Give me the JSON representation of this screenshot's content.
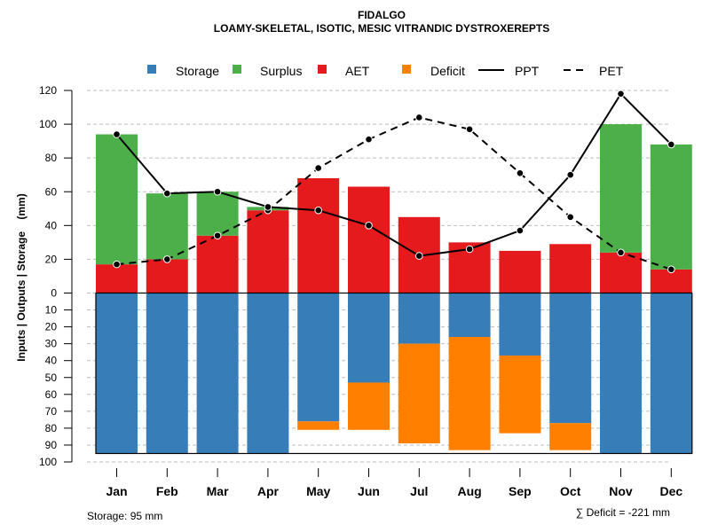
{
  "chart_data": {
    "type": "bar",
    "title": "FIDALGO",
    "subtitle": "LOAMY-SKELETAL, ISOTIC, MESIC VITRANDIC DYSTROXEREPTS",
    "ylabel": "Inputs | Outputs | Storage    (mm)",
    "xlabel": "",
    "categories": [
      "Jan",
      "Feb",
      "Mar",
      "Apr",
      "May",
      "Jun",
      "Jul",
      "Aug",
      "Sep",
      "Oct",
      "Nov",
      "Dec"
    ],
    "ylim_upper": [
      0,
      120
    ],
    "ylim_lower": [
      0,
      100
    ],
    "yticks_upper": [
      "0",
      "20",
      "40",
      "60",
      "80",
      "100",
      "120"
    ],
    "yticks_lower": [
      "10",
      "20",
      "30",
      "40",
      "50",
      "60",
      "70",
      "80",
      "90",
      "100"
    ],
    "grid": true,
    "legend_position": "top",
    "legend": [
      {
        "label": "Storage",
        "kind": "box",
        "color": "#377EB8"
      },
      {
        "label": "Surplus",
        "kind": "box",
        "color": "#4DAF4A"
      },
      {
        "label": "AET",
        "kind": "box",
        "color": "#E41A1C"
      },
      {
        "label": "Deficit",
        "kind": "box",
        "color": "#FF7F00"
      },
      {
        "label": "PPT",
        "kind": "solid-line",
        "color": "#000000"
      },
      {
        "label": "PET",
        "kind": "dashed-line",
        "color": "#000000"
      }
    ],
    "series": [
      {
        "name": "AET",
        "values": [
          17,
          20,
          34,
          49,
          68,
          63,
          45,
          30,
          25,
          29,
          24,
          14
        ]
      },
      {
        "name": "Surplus",
        "values": [
          77,
          39,
          26,
          2,
          0,
          0,
          0,
          0,
          0,
          0,
          76,
          74
        ]
      },
      {
        "name": "Storage",
        "values": [
          95,
          95,
          95,
          95,
          76,
          53,
          30,
          26,
          37,
          77,
          95,
          95
        ]
      },
      {
        "name": "Deficit",
        "values": [
          0,
          0,
          0,
          0,
          5,
          28,
          59,
          67,
          46,
          16,
          0,
          0
        ]
      },
      {
        "name": "PPT",
        "values": [
          94,
          59,
          60,
          51,
          49,
          40,
          22,
          26,
          37,
          70,
          118,
          88
        ]
      },
      {
        "name": "PET",
        "values": [
          17,
          20,
          34,
          49,
          74,
          91,
          104,
          97,
          71,
          45,
          24,
          14
        ]
      }
    ],
    "annotations": {
      "storage": "Storage: 95 mm",
      "deficit_sum": "∑ Deficit = -221 mm"
    },
    "colors": {
      "storage": "#377EB8",
      "surplus": "#4DAF4A",
      "aet": "#E41A1C",
      "deficit": "#FF7F00",
      "grid": "#BEBEBE"
    }
  }
}
